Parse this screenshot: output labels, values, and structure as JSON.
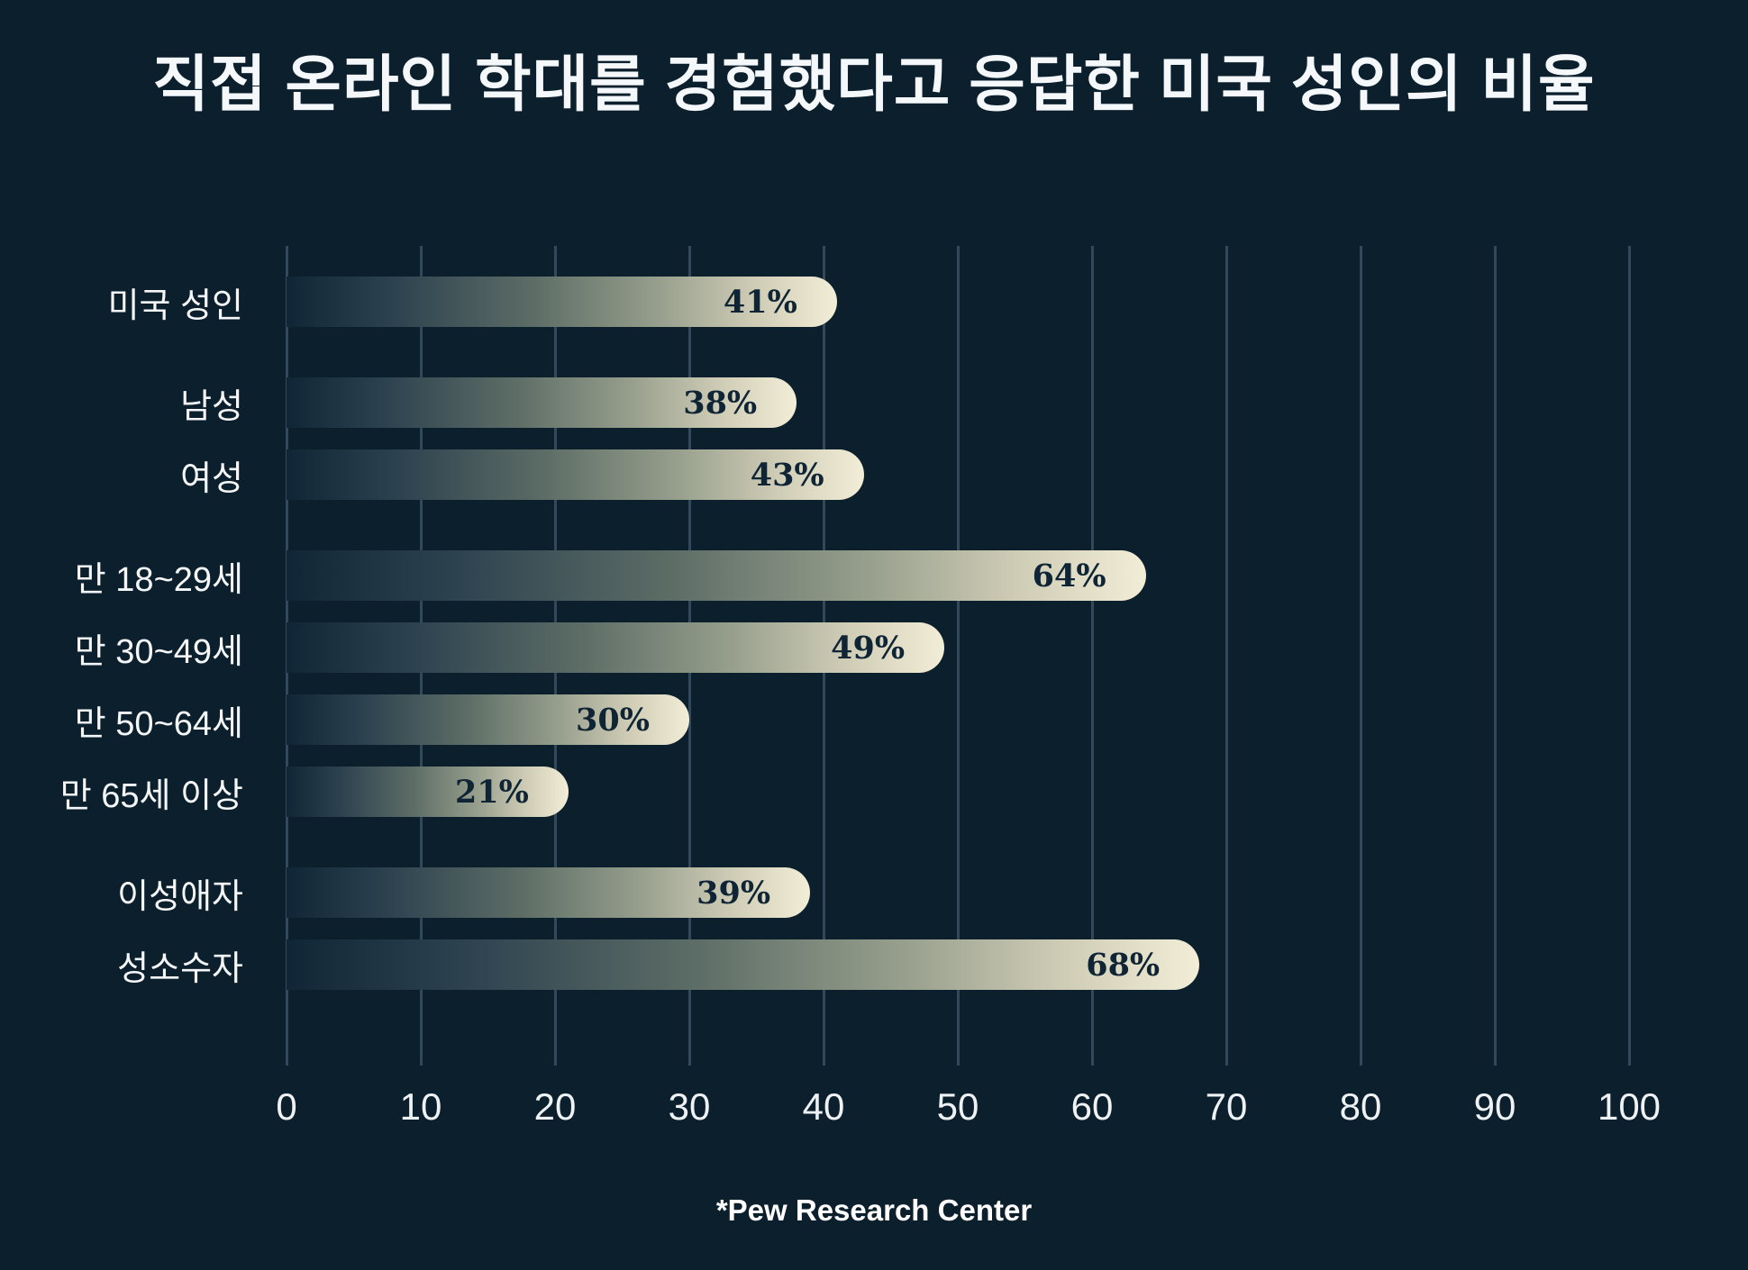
{
  "title": "직접 온라인 학대를 경험했다고 응답한 미국 성인의 비율",
  "source": "*Pew Research Center",
  "colors": {
    "background": "#0c1f2d",
    "gridline": "#32495c",
    "bar_gradient_start": "#102636",
    "bar_gradient_end": "#f2edd6",
    "category_text": "#f4f6f7",
    "value_text": "#0f2535",
    "axis_text": "#eef2f4",
    "title_text": "#f5f8fa"
  },
  "chart_data": {
    "type": "bar",
    "orientation": "horizontal",
    "title": "직접 온라인 학대를 경험했다고 응답한 미국 성인의 비율",
    "xlabel": "",
    "ylabel": "",
    "xlim": [
      0,
      100
    ],
    "x_ticks": [
      0,
      10,
      20,
      30,
      40,
      50,
      60,
      70,
      80,
      90,
      100
    ],
    "grid": true,
    "annotation": "*Pew Research Center",
    "categories": [
      "미국 성인",
      "남성",
      "여성",
      "만 18~29세",
      "만 30~49세",
      "만 50~64세",
      "만 65세 이상",
      "이성애자",
      "성소수자"
    ],
    "values": [
      41,
      38,
      43,
      64,
      49,
      30,
      21,
      39,
      68
    ],
    "rows": [
      {
        "label": "미국 성인",
        "value": 41,
        "value_label": "41%",
        "group": 0
      },
      {
        "label": "남성",
        "value": 38,
        "value_label": "38%",
        "group": 1
      },
      {
        "label": "여성",
        "value": 43,
        "value_label": "43%",
        "group": 1
      },
      {
        "label": "만 18~29세",
        "value": 64,
        "value_label": "64%",
        "group": 2
      },
      {
        "label": "만 30~49세",
        "value": 49,
        "value_label": "49%",
        "group": 2
      },
      {
        "label": "만 50~64세",
        "value": 30,
        "value_label": "30%",
        "group": 2
      },
      {
        "label": "만 65세 이상",
        "value": 21,
        "value_label": "21%",
        "group": 2
      },
      {
        "label": "이성애자",
        "value": 39,
        "value_label": "39%",
        "group": 3
      },
      {
        "label": "성소수자",
        "value": 68,
        "value_label": "68%",
        "group": 3
      }
    ]
  }
}
